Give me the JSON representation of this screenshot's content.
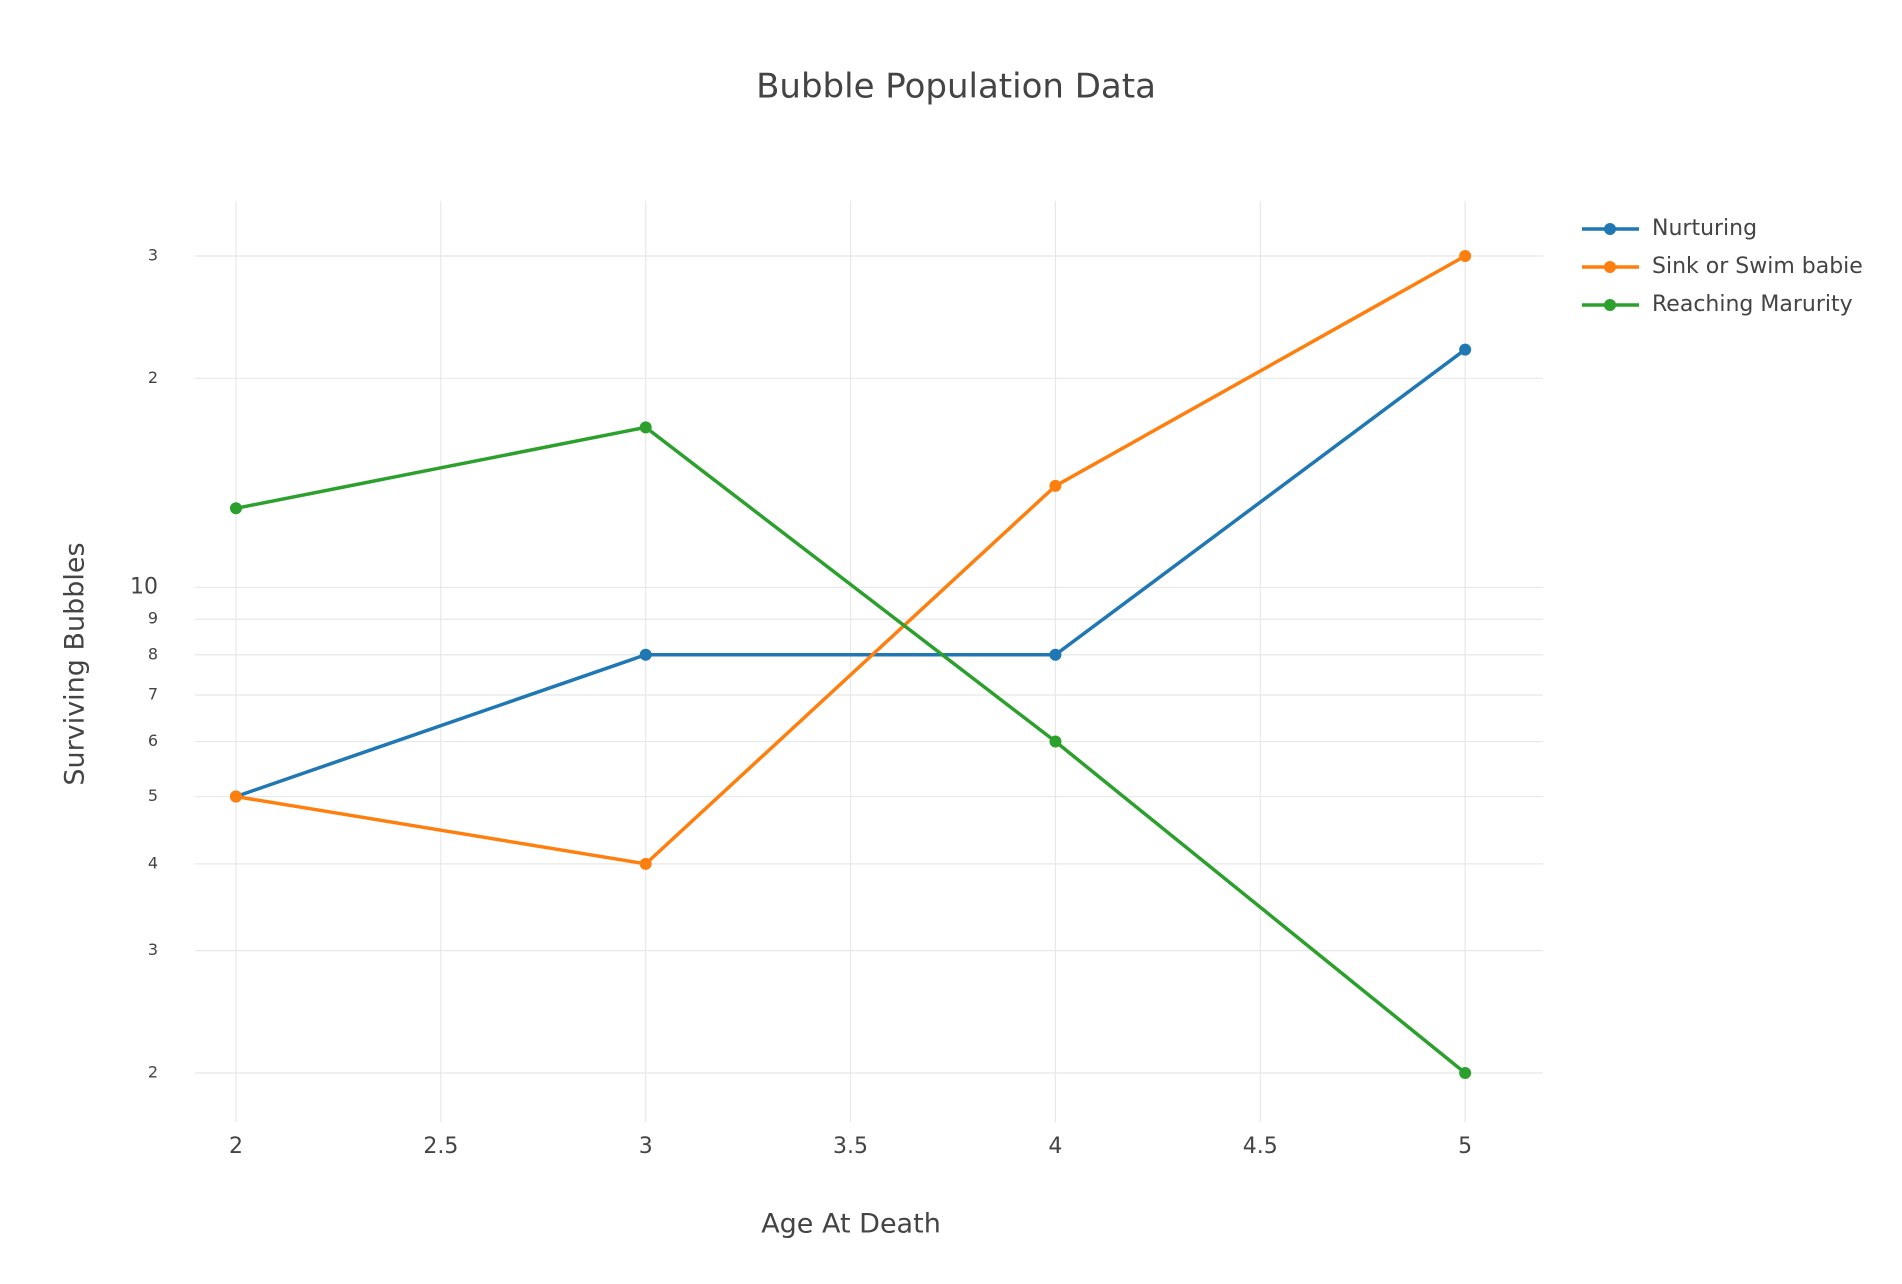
{
  "chart_data": {
    "type": "line",
    "title": "Bubble Population Data",
    "x_label": "Age At Death",
    "y_label": "Surviving Bubbles",
    "x": [
      2,
      3,
      4,
      5
    ],
    "series": [
      {
        "name": "Nurturing",
        "color": "#1f77b4",
        "values": [
          5,
          8,
          8,
          22
        ]
      },
      {
        "name": "Sink or Swim babie",
        "color": "#ff7f0e",
        "values": [
          5,
          4,
          14,
          30
        ]
      },
      {
        "name": "Reaching Marurity",
        "color": "#2ca02c",
        "values": [
          13,
          17,
          6,
          2
        ]
      }
    ],
    "xlim": [
      1.9,
      5.19
    ],
    "xticks": [
      2,
      2.5,
      3,
      3.5,
      4,
      4.5,
      5
    ],
    "ylim": [
      1.7,
      36
    ],
    "y_scale": "log",
    "yticks": [
      2,
      3,
      4,
      5,
      6,
      7,
      8,
      9,
      10,
      {
        "value": 20,
        "label": "2"
      },
      {
        "value": 30,
        "label": "3"
      }
    ],
    "grid": true,
    "legend": "top-right"
  }
}
